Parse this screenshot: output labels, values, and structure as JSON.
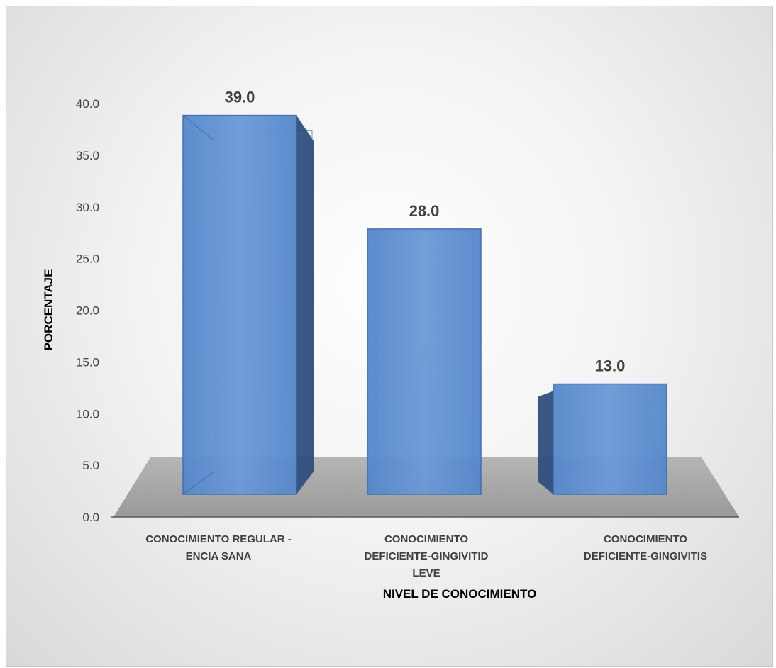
{
  "chart_data": {
    "type": "bar",
    "style": "3d-column",
    "categories": [
      [
        "CONOCIMIENTO REGULAR -",
        "ENCIA SANA"
      ],
      [
        "CONOCIMIENTO",
        "DEFICIENTE-GINGIVITID",
        "LEVE"
      ],
      [
        "CONOCIMIENTO",
        "DEFICIENTE-GINGIVITIS"
      ]
    ],
    "values": [
      39.0,
      28.0,
      13.0
    ],
    "data_labels": [
      "39.0",
      "28.0",
      "13.0"
    ],
    "xlabel": "NIVEL DE CONOCIMIENTO",
    "ylabel": "PORCENTAJE",
    "ylim": [
      0,
      40
    ],
    "yticks": [
      "0.0",
      "5.0",
      "10.0",
      "15.0",
      "20.0",
      "25.0",
      "30.0",
      "35.0",
      "40.0"
    ],
    "ytick_values": [
      0,
      5,
      10,
      15,
      20,
      25,
      30,
      35,
      40
    ],
    "bar_color": "#5b8ed1",
    "floor_color": "#a6a6a6",
    "grid": false,
    "legend": "none"
  }
}
